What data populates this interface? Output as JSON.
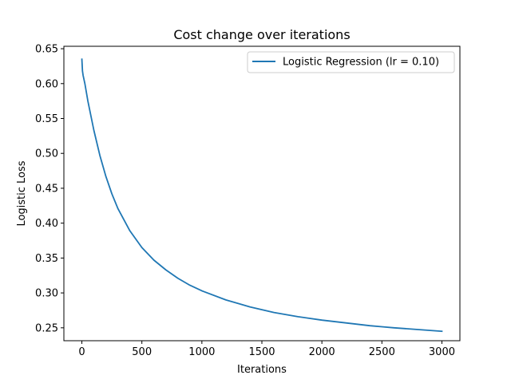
{
  "chart_data": {
    "type": "line",
    "title": "Cost change over iterations",
    "xlabel": "Iterations",
    "ylabel": "Logistic Loss",
    "xlim": [
      -150,
      3150
    ],
    "ylim": [
      0.2315,
      0.6535
    ],
    "xticks": [
      0,
      500,
      1000,
      1500,
      2000,
      2500,
      3000
    ],
    "xtick_labels": [
      "0",
      "500",
      "1000",
      "1500",
      "2000",
      "2500",
      "3000"
    ],
    "yticks": [
      0.25,
      0.3,
      0.35,
      0.4,
      0.45,
      0.5,
      0.55,
      0.6,
      0.65
    ],
    "ytick_labels": [
      "0.25",
      "0.30",
      "0.35",
      "0.40",
      "0.45",
      "0.50",
      "0.55",
      "0.60",
      "0.65"
    ],
    "grid": false,
    "legend_position": "top-right",
    "series": [
      {
        "name": "Logistic Regression (lr = 0.10)",
        "color": "#1f77b4",
        "x": [
          0,
          5,
          10,
          25,
          50,
          75,
          100,
          150,
          200,
          250,
          300,
          400,
          500,
          600,
          700,
          800,
          900,
          1000,
          1200,
          1400,
          1500,
          1600,
          1800,
          2000,
          2200,
          2400,
          2500,
          2600,
          2800,
          3000
        ],
        "y": [
          0.635,
          0.618,
          0.612,
          0.6,
          0.575,
          0.554,
          0.533,
          0.497,
          0.467,
          0.442,
          0.421,
          0.389,
          0.365,
          0.347,
          0.333,
          0.321,
          0.311,
          0.303,
          0.29,
          0.28,
          0.276,
          0.272,
          0.266,
          0.261,
          0.257,
          0.253,
          0.2515,
          0.25,
          0.2475,
          0.245
        ]
      }
    ]
  }
}
